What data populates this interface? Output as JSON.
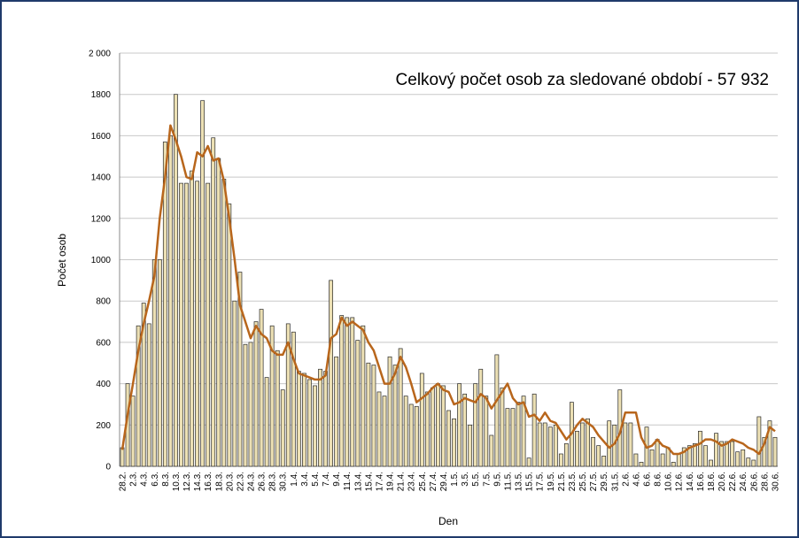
{
  "chart_data": {
    "type": "bar",
    "annotation": "Celkový počet osob za sledované období - 57 932",
    "y_label": "Počet osob",
    "x_label": "Den",
    "categories": [
      "28.2.",
      null,
      "2.3.",
      null,
      "4.3.",
      null,
      "6.3.",
      null,
      "8.3.",
      null,
      "10.3.",
      null,
      "12.3.",
      null,
      "14.3.",
      null,
      "16.3.",
      null,
      "18.3.",
      null,
      "20.3.",
      null,
      "22.3.",
      null,
      "24.3.",
      null,
      "26.3.",
      null,
      "28.3.",
      null,
      "30.3.",
      null,
      "1.4.",
      null,
      "3.4.",
      null,
      "5.4.",
      null,
      "7.4.",
      null,
      "9.4.",
      null,
      "11.4.",
      null,
      "13.4.",
      null,
      "15.4.",
      null,
      "17.4.",
      null,
      "19.4.",
      null,
      "21.4.",
      null,
      "23.4.",
      null,
      "25.4.",
      null,
      "27.4.",
      null,
      "29.4.",
      null,
      "1.5.",
      null,
      "3.5.",
      null,
      "5.5.",
      null,
      "7.5.",
      null,
      "9.5.",
      null,
      "11.5.",
      null,
      "13.5.",
      null,
      "15.5.",
      null,
      "17.5.",
      null,
      "19.5.",
      null,
      "21.5.",
      null,
      "23.5.",
      null,
      "25.5.",
      null,
      "27.5.",
      null,
      "29.5.",
      null,
      "31.5.",
      null,
      "2.6.",
      null,
      "4.6.",
      null,
      "6.6.",
      null,
      "8.6.",
      null,
      "10.6.",
      null,
      "12.6.",
      null,
      "14.6.",
      null,
      "16.6.",
      null,
      "18.6.",
      null,
      "20.6.",
      null,
      "22.6.",
      null,
      "24.6.",
      null,
      "26.6.",
      null,
      "28.6.",
      null,
      "30.6."
    ],
    "series": [
      {
        "type": "bar",
        "color": "#ece0b4",
        "values": [
          90,
          400,
          340,
          680,
          790,
          690,
          1000,
          1000,
          1570,
          1600,
          1800,
          1370,
          1370,
          1430,
          1380,
          1770,
          1370,
          1590,
          1490,
          1390,
          1270,
          800,
          940,
          590,
          600,
          700,
          760,
          430,
          680,
          560,
          370,
          690,
          650,
          460,
          450,
          420,
          390,
          470,
          460,
          900,
          530,
          730,
          720,
          720,
          610,
          680,
          500,
          490,
          360,
          340,
          530,
          490,
          570,
          340,
          300,
          290,
          450,
          360,
          380,
          400,
          390,
          270,
          230,
          400,
          350,
          200,
          400,
          470,
          340,
          150,
          540,
          380,
          280,
          280,
          310,
          340,
          40,
          350,
          210,
          210,
          190,
          200,
          60,
          110,
          310,
          170,
          210,
          230,
          140,
          100,
          50,
          220,
          200,
          370,
          210,
          210,
          60,
          20,
          190,
          80,
          130,
          60,
          90,
          20,
          60,
          90,
          100,
          110,
          170,
          100,
          30,
          160,
          120,
          120,
          120,
          70,
          80,
          40,
          30,
          240,
          140,
          220,
          140
        ]
      },
      {
        "type": "line",
        "color": "#b8661c",
        "values": [
          80,
          250,
          400,
          560,
          690,
          800,
          920,
          1200,
          1400,
          1650,
          1580,
          1500,
          1400,
          1390,
          1520,
          1500,
          1550,
          1480,
          1490,
          1380,
          1200,
          1000,
          780,
          700,
          620,
          680,
          640,
          620,
          560,
          540,
          540,
          600,
          520,
          450,
          440,
          430,
          420,
          420,
          440,
          620,
          640,
          720,
          680,
          700,
          680,
          660,
          600,
          560,
          480,
          400,
          400,
          450,
          530,
          480,
          400,
          310,
          330,
          350,
          380,
          400,
          370,
          360,
          300,
          310,
          330,
          320,
          310,
          350,
          330,
          280,
          320,
          360,
          400,
          330,
          300,
          310,
          240,
          250,
          220,
          260,
          220,
          210,
          170,
          130,
          160,
          200,
          230,
          210,
          190,
          150,
          120,
          90,
          110,
          160,
          260,
          260,
          260,
          140,
          90,
          100,
          130,
          100,
          90,
          60,
          60,
          70,
          90,
          100,
          110,
          130,
          130,
          120,
          100,
          110,
          130,
          120,
          110,
          90,
          80,
          60,
          110,
          190,
          170
        ]
      }
    ],
    "ylim": [
      0,
      2000
    ],
    "yticks": [
      0,
      200,
      400,
      600,
      800,
      1000,
      1200,
      1400,
      1600,
      1800,
      {
        "value": 2000,
        "label": "2 000"
      }
    ],
    "grid": true
  }
}
